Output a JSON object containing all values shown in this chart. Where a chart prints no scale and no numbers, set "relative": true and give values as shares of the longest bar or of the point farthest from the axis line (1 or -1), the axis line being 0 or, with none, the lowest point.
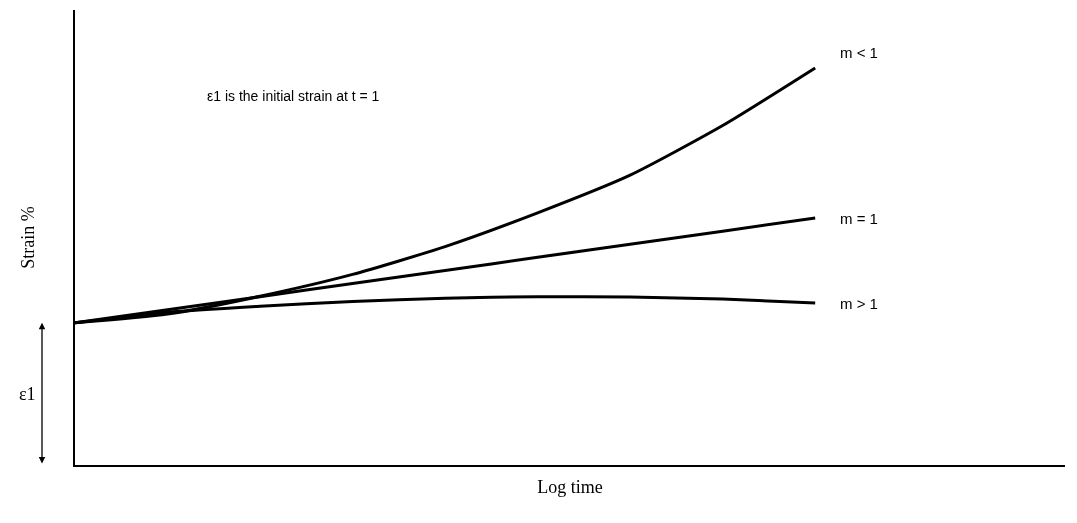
{
  "chart_data": {
    "type": "line",
    "relative": true,
    "xlabel": "Log time",
    "ylabel": "Strain %",
    "categories": [
      null,
      null,
      null,
      null,
      null,
      null,
      null,
      null,
      null
    ],
    "series": [
      {
        "name": "m < 1",
        "color": "#000000",
        "values": [
          0.358,
          0.38,
          0.425,
          0.48,
          0.55,
          0.635,
          0.73,
          0.855,
          1.0
        ]
      },
      {
        "name": "m = 1",
        "color": "#000000",
        "values": [
          0.358,
          0.391,
          0.424,
          0.457,
          0.49,
          0.523,
          0.556,
          0.589,
          0.622
        ]
      },
      {
        "name": "m > 1",
        "color": "#000000",
        "values": [
          0.358,
          0.385,
          0.4,
          0.412,
          0.42,
          0.424,
          0.423,
          0.418,
          0.408
        ]
      }
    ],
    "annotations": [
      "ε1 is the initial strain at t = 1",
      "ε1"
    ],
    "legend": false,
    "marker": "none",
    "line_style": "solid"
  }
}
